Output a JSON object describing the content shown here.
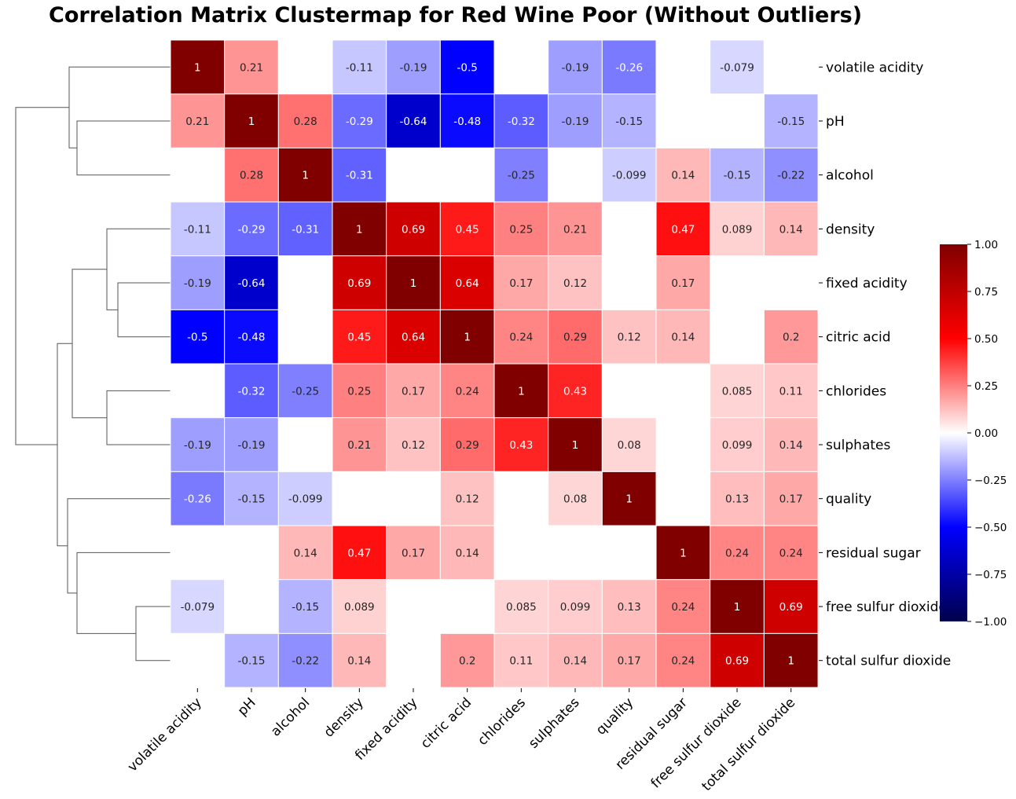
{
  "chart_data": {
    "type": "heatmap",
    "title": "Correlation Matrix Clustermap for Red Wine Poor (Without Outliers)",
    "labels": [
      "volatile acidity",
      "pH",
      "alcohol",
      "density",
      "fixed acidity",
      "citric acid",
      "chlorides",
      "sulphates",
      "quality",
      "residual sugar",
      "free sulfur dioxide",
      "total sulfur dioxide"
    ],
    "values": [
      [
        1,
        0.21,
        null,
        -0.11,
        -0.19,
        -0.5,
        null,
        -0.19,
        -0.26,
        null,
        -0.079,
        null
      ],
      [
        0.21,
        1,
        0.28,
        -0.29,
        -0.64,
        -0.48,
        -0.32,
        -0.19,
        -0.15,
        null,
        null,
        -0.15
      ],
      [
        null,
        0.28,
        1,
        -0.31,
        null,
        null,
        -0.25,
        null,
        -0.099,
        0.14,
        -0.15,
        -0.22
      ],
      [
        -0.11,
        -0.29,
        -0.31,
        1,
        0.69,
        0.45,
        0.25,
        0.21,
        null,
        0.47,
        0.089,
        0.14
      ],
      [
        -0.19,
        -0.64,
        null,
        0.69,
        1,
        0.64,
        0.17,
        0.12,
        null,
        0.17,
        null,
        null
      ],
      [
        -0.5,
        -0.48,
        null,
        0.45,
        0.64,
        1,
        0.24,
        0.29,
        0.12,
        0.14,
        null,
        0.2
      ],
      [
        null,
        -0.32,
        -0.25,
        0.25,
        0.17,
        0.24,
        1,
        0.43,
        null,
        null,
        0.085,
        0.11
      ],
      [
        -0.19,
        -0.19,
        null,
        0.21,
        0.12,
        0.29,
        0.43,
        1,
        0.08,
        null,
        0.099,
        0.14
      ],
      [
        -0.26,
        -0.15,
        -0.099,
        null,
        null,
        0.12,
        null,
        0.08,
        1,
        null,
        0.13,
        0.17
      ],
      [
        null,
        null,
        0.14,
        0.47,
        0.17,
        0.14,
        null,
        null,
        null,
        1,
        0.24,
        0.24
      ],
      [
        -0.079,
        null,
        -0.15,
        0.089,
        null,
        null,
        0.085,
        0.099,
        0.13,
        0.24,
        1,
        0.69
      ],
      [
        null,
        -0.15,
        -0.22,
        0.14,
        null,
        0.2,
        0.11,
        0.14,
        0.17,
        0.24,
        0.69,
        1
      ]
    ],
    "colormap": "seismic",
    "colorbar": {
      "range": [
        -1,
        1
      ],
      "ticks": [
        "1.00",
        "0.75",
        "0.50",
        "0.25",
        "0.00",
        "−0.25",
        "−0.50",
        "−0.75",
        "−1.00"
      ]
    },
    "dendrogram": "rows, left side"
  }
}
